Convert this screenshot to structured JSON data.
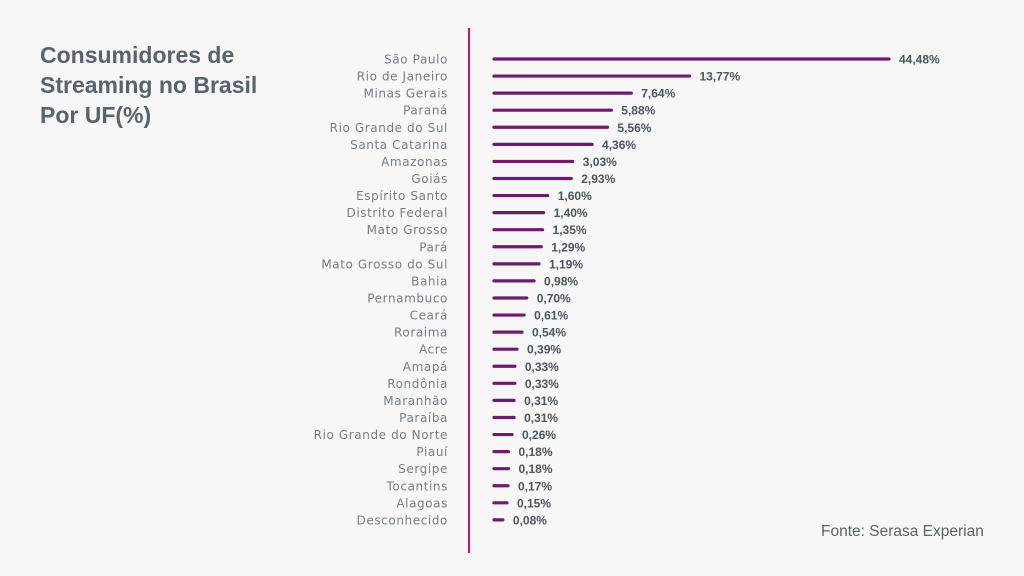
{
  "chart_data": {
    "type": "bar",
    "orientation": "horizontal",
    "title": "Consumidores de Streaming no Brasil Por UF(%)",
    "title_lines": [
      "Consumidores de",
      "Streaming no Brasil",
      "Por UF(%)"
    ],
    "categories": [
      "São Paulo",
      "Rio de Janeiro",
      "Minas Gerais",
      "Paraná",
      "Rio Grande do Sul",
      "Santa Catarina",
      "Amazonas",
      "Goiás",
      "Espírito Santo",
      "Distrito Federal",
      "Mato Grosso",
      "Pará",
      "Mato Grosso do Sul",
      "Bahia",
      "Pernambuco",
      "Ceará",
      "Roraima",
      "Acre",
      "Amapá",
      "Rondônia",
      "Maranhão",
      "Paraíba",
      "Rio Grande do Norte",
      "Piauí",
      "Sergipe",
      "Tocantins",
      "Alagoas",
      "Desconhecido"
    ],
    "values": [
      44.48,
      13.77,
      7.64,
      5.88,
      5.56,
      4.36,
      3.03,
      2.93,
      1.6,
      1.4,
      1.35,
      1.29,
      1.19,
      0.98,
      0.7,
      0.61,
      0.54,
      0.39,
      0.33,
      0.33,
      0.31,
      0.31,
      0.26,
      0.18,
      0.18,
      0.17,
      0.15,
      0.08
    ],
    "data_labels": [
      "44,48%",
      "13,77%",
      "7,64%",
      "5,88%",
      "5,56%",
      "4,36%",
      "3,03%",
      "2,93%",
      "1,60%",
      "1,40%",
      "1,35%",
      "1,29%",
      "1,19%",
      "0,98%",
      "0,70%",
      "0,61%",
      "0,54%",
      "0,39%",
      "0,33%",
      "0,33%",
      "0,31%",
      "0,31%",
      "0,26%",
      "0,18%",
      "0,18%",
      "0,17%",
      "0,15%",
      "0,08%"
    ],
    "unit": "%",
    "grid": false,
    "legend": "none",
    "colors": {
      "bar": "#6d1a6f",
      "axis": "#b3206e",
      "background": "#f7f7f7",
      "text": "#59636e"
    }
  },
  "source": "Fonte: Serasa Experian"
}
